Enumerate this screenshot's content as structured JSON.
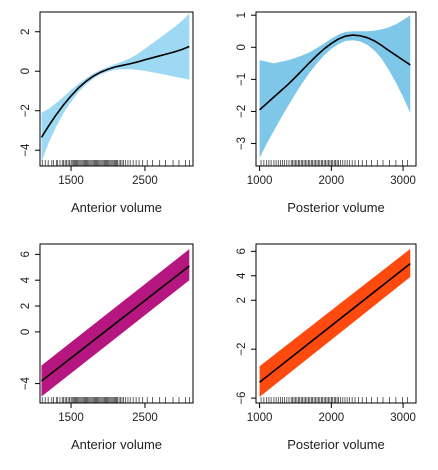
{
  "chart_data": [
    {
      "type": "line",
      "band_color": "#9dd9f3",
      "line_color": "#000000",
      "xlabel": "Anterior volume",
      "ylabel": "",
      "xlim": [
        1080,
        3150
      ],
      "ylim": [
        -4.8,
        3.0
      ],
      "xticks": [
        1500,
        2500
      ],
      "yticks": [
        -4,
        -2,
        0,
        2
      ],
      "x": [
        1100,
        1200,
        1300,
        1400,
        1500,
        1600,
        1700,
        1800,
        1900,
        2000,
        2100,
        2200,
        2300,
        2400,
        2500,
        2600,
        2700,
        2800,
        2900,
        3000,
        3100
      ],
      "y": [
        -3.35,
        -2.75,
        -2.2,
        -1.7,
        -1.25,
        -0.85,
        -0.52,
        -0.25,
        -0.05,
        0.1,
        0.22,
        0.3,
        0.38,
        0.47,
        0.58,
        0.68,
        0.78,
        0.88,
        0.98,
        1.1,
        1.25
      ],
      "lower": [
        -4.6,
        -3.6,
        -2.8,
        -2.1,
        -1.55,
        -1.05,
        -0.68,
        -0.38,
        -0.16,
        -0.02,
        0.08,
        0.1,
        0.1,
        0.07,
        0.02,
        -0.05,
        -0.12,
        -0.2,
        -0.28,
        -0.35,
        -0.42
      ],
      "upper": [
        -2.1,
        -1.9,
        -1.6,
        -1.3,
        -0.95,
        -0.65,
        -0.36,
        -0.12,
        0.06,
        0.22,
        0.36,
        0.5,
        0.66,
        0.87,
        1.14,
        1.41,
        1.68,
        1.96,
        2.24,
        2.55,
        2.92
      ],
      "rug": [
        1110,
        1150,
        1190,
        1240,
        1260,
        1300,
        1320,
        1350,
        1380,
        1400,
        1420,
        1440,
        1460,
        1480,
        1500,
        1515,
        1530,
        1545,
        1560,
        1575,
        1590,
        1605,
        1620,
        1635,
        1650,
        1665,
        1680,
        1695,
        1710,
        1725,
        1740,
        1755,
        1770,
        1785,
        1800,
        1815,
        1830,
        1845,
        1860,
        1875,
        1890,
        1905,
        1920,
        1935,
        1950,
        1965,
        1980,
        1995,
        2010,
        2025,
        2040,
        2055,
        2070,
        2085,
        2100,
        2115,
        2130,
        2150,
        2170,
        2190,
        2210,
        2240,
        2270,
        2300,
        2340,
        2380,
        2420,
        2470,
        2530,
        2600,
        2700,
        2780,
        2880,
        2960,
        3050,
        3100
      ]
    },
    {
      "type": "line",
      "band_color": "#7ec7e9",
      "line_color": "#000000",
      "xlabel": "Posterior volume",
      "ylabel": "",
      "xlim": [
        950,
        3180
      ],
      "ylim": [
        -3.7,
        1.1
      ],
      "xticks": [
        1000,
        2000,
        3000
      ],
      "yticks": [
        -3,
        -2,
        -1,
        0,
        1
      ],
      "x": [
        1000,
        1100,
        1200,
        1300,
        1400,
        1500,
        1600,
        1700,
        1800,
        1900,
        2000,
        2100,
        2200,
        2300,
        2400,
        2500,
        2600,
        2700,
        2800,
        2900,
        3000,
        3100
      ],
      "y": [
        -1.95,
        -1.75,
        -1.55,
        -1.35,
        -1.15,
        -0.93,
        -0.7,
        -0.47,
        -0.25,
        -0.05,
        0.12,
        0.26,
        0.35,
        0.38,
        0.36,
        0.3,
        0.2,
        0.06,
        -0.1,
        -0.25,
        -0.4,
        -0.55
      ],
      "lower": [
        -3.45,
        -3.0,
        -2.6,
        -2.2,
        -1.82,
        -1.45,
        -1.1,
        -0.78,
        -0.5,
        -0.25,
        -0.05,
        0.1,
        0.2,
        0.22,
        0.18,
        0.08,
        -0.1,
        -0.35,
        -0.7,
        -1.1,
        -1.55,
        -2.05
      ],
      "upper": [
        -0.4,
        -0.45,
        -0.5,
        -0.45,
        -0.4,
        -0.33,
        -0.25,
        -0.15,
        -0.02,
        0.12,
        0.27,
        0.4,
        0.48,
        0.5,
        0.5,
        0.5,
        0.52,
        0.56,
        0.62,
        0.72,
        0.85,
        1.0
      ],
      "rug": [
        1020,
        1060,
        1100,
        1130,
        1160,
        1200,
        1230,
        1260,
        1290,
        1320,
        1350,
        1380,
        1410,
        1440,
        1460,
        1480,
        1500,
        1520,
        1540,
        1560,
        1580,
        1600,
        1620,
        1640,
        1660,
        1680,
        1700,
        1720,
        1740,
        1760,
        1780,
        1800,
        1820,
        1840,
        1860,
        1880,
        1900,
        1920,
        1940,
        1960,
        1980,
        2000,
        2020,
        2040,
        2060,
        2080,
        2100,
        2130,
        2160,
        2190,
        2220,
        2250,
        2290,
        2330,
        2380,
        2430,
        2490,
        2560,
        2640,
        2720,
        2810,
        2900,
        2990,
        3060
      ]
    },
    {
      "type": "line",
      "band_color": "#b5167f",
      "line_color": "#000000",
      "xlabel": "Anterior volume",
      "ylabel": "",
      "xlim": [
        1080,
        3150
      ],
      "ylim": [
        -5.5,
        6.8
      ],
      "xticks": [
        1500,
        2500
      ],
      "yticks": [
        -4,
        0,
        2,
        4,
        6
      ],
      "x": [
        1100,
        3100
      ],
      "y": [
        -3.8,
        5.1
      ],
      "lower": [
        -5.0,
        4.0
      ],
      "upper": [
        -2.6,
        6.4
      ],
      "rug": [
        1110,
        1150,
        1190,
        1240,
        1260,
        1300,
        1320,
        1350,
        1380,
        1400,
        1420,
        1440,
        1460,
        1480,
        1500,
        1515,
        1530,
        1545,
        1560,
        1575,
        1590,
        1605,
        1620,
        1635,
        1650,
        1665,
        1680,
        1695,
        1710,
        1725,
        1740,
        1755,
        1770,
        1785,
        1800,
        1815,
        1830,
        1845,
        1860,
        1875,
        1890,
        1905,
        1920,
        1935,
        1950,
        1965,
        1980,
        1995,
        2010,
        2025,
        2040,
        2055,
        2070,
        2085,
        2100,
        2115,
        2130,
        2150,
        2170,
        2190,
        2210,
        2240,
        2270,
        2300,
        2340,
        2380,
        2420,
        2470,
        2530,
        2600,
        2700,
        2780,
        2880,
        2960,
        3050,
        3100
      ]
    },
    {
      "type": "line",
      "band_color": "#ff4a0f",
      "line_color": "#000000",
      "xlabel": "Posterior volume",
      "ylabel": "",
      "xlim": [
        950,
        3180
      ],
      "ylim": [
        -6.4,
        6.6
      ],
      "xticks": [
        1000,
        2000,
        3000
      ],
      "yticks": [
        -6,
        -2,
        2,
        4,
        6
      ],
      "x": [
        1000,
        3100
      ],
      "y": [
        -4.7,
        5.0
      ],
      "lower": [
        -5.9,
        3.9
      ],
      "upper": [
        -3.4,
        6.2
      ],
      "rug": [
        1020,
        1060,
        1100,
        1130,
        1160,
        1200,
        1230,
        1260,
        1290,
        1320,
        1350,
        1380,
        1410,
        1440,
        1460,
        1480,
        1500,
        1520,
        1540,
        1560,
        1580,
        1600,
        1620,
        1640,
        1660,
        1680,
        1700,
        1720,
        1740,
        1760,
        1780,
        1800,
        1820,
        1840,
        1860,
        1880,
        1900,
        1920,
        1940,
        1960,
        1980,
        2000,
        2020,
        2040,
        2060,
        2080,
        2100,
        2130,
        2160,
        2190,
        2220,
        2250,
        2290,
        2330,
        2380,
        2430,
        2490,
        2560,
        2640,
        2720,
        2810,
        2900,
        2990,
        3060
      ]
    }
  ]
}
